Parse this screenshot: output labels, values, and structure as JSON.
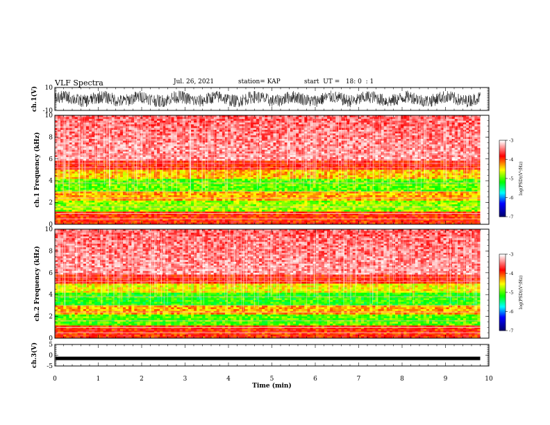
{
  "header": {
    "title": "VLF Spectra",
    "date": "Jul. 26, 2021",
    "station": "station= KAP",
    "start": "start  UT =   18: 0  : 1"
  },
  "chart_data": [
    {
      "type": "line",
      "name": "ch1-waveform",
      "ylabel": "ch.1(V)",
      "ylim": [
        -10,
        10
      ],
      "yticks": [
        "10",
        "-10"
      ],
      "xlim": [
        0,
        10
      ]
    },
    {
      "type": "heatmap",
      "name": "ch1-spectrogram",
      "ylabel": "ch.1  Frequency  (kHz)",
      "ylim": [
        0,
        10
      ],
      "yticks": [
        "0",
        "2",
        "4",
        "6",
        "8",
        "10"
      ],
      "data_extent_min": 9.8,
      "colorbar": {
        "label": "log(PSD)(V²/Hz)",
        "range": [
          -7,
          -3
        ],
        "ticks": [
          "-3",
          "-4",
          "-5",
          "-6",
          "-7"
        ]
      }
    },
    {
      "type": "heatmap",
      "name": "ch2-spectrogram",
      "ylabel": "ch.2  Frequency  (kHz)",
      "ylim": [
        0,
        10
      ],
      "yticks": [
        "0",
        "2",
        "4",
        "6",
        "8",
        "10"
      ],
      "data_extent_min": 9.8,
      "colorbar": {
        "label": "log(PSD)(V²/Hz)",
        "range": [
          -7,
          -3
        ],
        "ticks": [
          "-3",
          "-4",
          "-5",
          "-6",
          "-7"
        ]
      }
    },
    {
      "type": "line",
      "name": "ch3-waveform",
      "ylabel": "ch.3(V)",
      "ylim": [
        -5,
        5
      ],
      "yticks": [
        "5",
        "0",
        "-5"
      ],
      "level": -1.5,
      "xlabel": "Time  (min)",
      "xlim": [
        0,
        10
      ],
      "xticks": [
        "0",
        "1",
        "2",
        "3",
        "4",
        "5",
        "6",
        "7",
        "8",
        "9",
        "10"
      ]
    }
  ],
  "colors": {
    "colormap": [
      "#000066",
      "#0000ff",
      "#00ffff",
      "#00ff00",
      "#ffff00",
      "#ff0000",
      "#ffffff"
    ]
  }
}
